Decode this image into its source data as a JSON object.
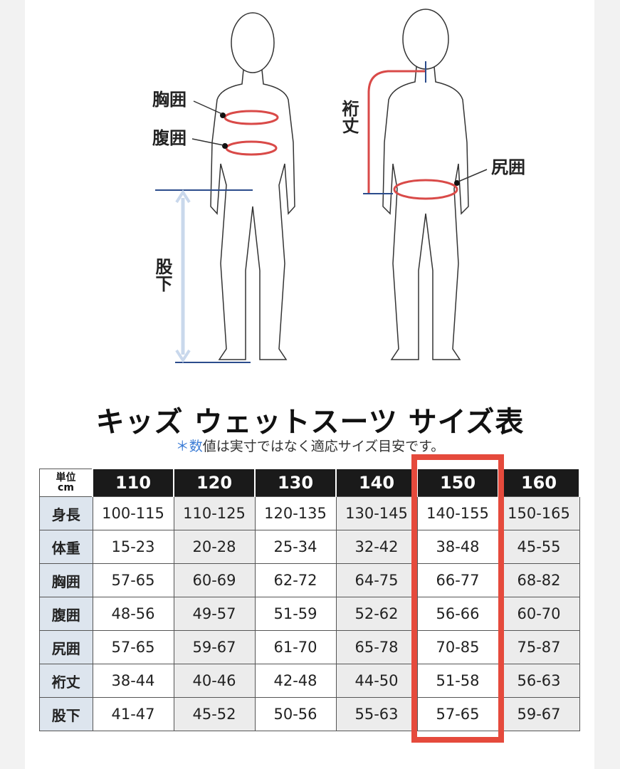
{
  "figure": {
    "front_labels": [
      "胸囲",
      "腹囲",
      "股下"
    ],
    "back_labels": [
      "裄丈",
      "尻囲"
    ]
  },
  "title": "キッズ ウェットスーツ サイズ表",
  "note": "＊数値は実寸ではなく適応サイズ目安です。",
  "table": {
    "corner": [
      "単位",
      "cm"
    ],
    "columns": [
      "110",
      "120",
      "130",
      "140",
      "150",
      "160"
    ],
    "highlight_column": 4,
    "rows": [
      [
        "身長",
        "100-115",
        "110-125",
        "120-135",
        "130-145",
        "140-155",
        "150-165"
      ],
      [
        "体重",
        "15-23",
        "20-28",
        "25-34",
        "32-42",
        "38-48",
        "45-55"
      ],
      [
        "胸囲",
        "57-65",
        "60-69",
        "62-72",
        "64-75",
        "66-77",
        "68-82"
      ],
      [
        "腹囲",
        "48-56",
        "49-57",
        "51-59",
        "52-62",
        "56-66",
        "60-70"
      ],
      [
        "尻囲",
        "57-65",
        "59-67",
        "61-70",
        "65-78",
        "70-85",
        "75-87"
      ],
      [
        "裄丈",
        "38-44",
        "40-46",
        "42-48",
        "44-50",
        "51-58",
        "56-63"
      ],
      [
        "股下",
        "41-47",
        "45-52",
        "50-56",
        "55-63",
        "57-65",
        "59-67"
      ]
    ]
  }
}
